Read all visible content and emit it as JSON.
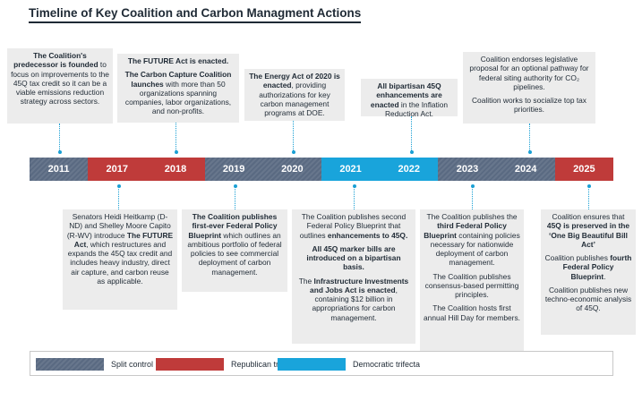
{
  "title": "Timeline of Key Coalition and Carbon Managment Actions",
  "colors": {
    "split": "#5a6a82",
    "republican": "#bf3b3a",
    "democratic": "#19a4db",
    "connector": "#1aa0d4",
    "card": "#ececec"
  },
  "timeline": [
    {
      "year": "2011",
      "control": "split"
    },
    {
      "year": "2017",
      "control": "republican"
    },
    {
      "year": "2018",
      "control": "republican"
    },
    {
      "year": "2019",
      "control": "split"
    },
    {
      "year": "2020",
      "control": "split"
    },
    {
      "year": "2021",
      "control": "democratic"
    },
    {
      "year": "2022",
      "control": "democratic"
    },
    {
      "year": "2023",
      "control": "split"
    },
    {
      "year": "2024",
      "control": "split"
    },
    {
      "year": "2025",
      "control": "republican"
    }
  ],
  "top_events": {
    "e2011": {
      "b1": "The Coalition's predecessor is founded",
      "t1": " to focus on improvements to the 45Q tax credit so it can be a viable emissions reduction strategy across sectors."
    },
    "e2018": {
      "b1": "The FUTURE Act is enacted.",
      "b2": "The Carbon Capture Coalition launches",
      "t2": " with more than 50 organizations spanning companies, labor organizations, and non-profits."
    },
    "e2020": {
      "b1": "The Energy Act of 2020 is enacted",
      "t1": ", providing authorizations for key carbon management programs at DOE."
    },
    "e2022": {
      "b1": "All bipartisan 45Q enhancements are enacted",
      "t1": " in the Inflation Reduction Act."
    },
    "e2024": {
      "t1": "Coalition endorses legislative proposal for an optional pathway for federal siting authority for CO₂ pipelines.",
      "t2": "Coalition works to socialize top tax priorities."
    }
  },
  "bottom_events": {
    "e2017": {
      "t1a": "Senators Heidi Heitkamp (D-ND) and Shelley Moore Capito (R-WV) introduce ",
      "b1": "The FUTURE Act",
      "t1b": ", which restructures and expands the 45Q tax credit and includes heavy industry, direct air capture, and carbon reuse as applicable."
    },
    "e2019": {
      "b1": "The Coalition publishes first-ever Federal Policy Blueprint",
      "t1": " which outlines an ambitious portfolio of federal policies to see commercial deployment of carbon management."
    },
    "e2021": {
      "t1": "The Coalition publishes second Federal Policy Blueprint that outlines ",
      "b1": "enhancements to 45Q.",
      "b2": "All 45Q marker bills are introduced on a bipartisan basis.",
      "t3a": "The ",
      "b3": "Infrastructure Investments and Jobs Act is enacted",
      "t3b": ", containing $12 billion in appropriations for carbon management."
    },
    "e2023": {
      "t1a": "The Coalition publishes the ",
      "b1": "third Federal Policy Blueprint",
      "t1b": " containing policies necessary for nationwide deployment of carbon management.",
      "t2": "The Coalition publishes consensus-based permitting principles.",
      "t3": "The Coalition hosts first annual Hill Day for members."
    },
    "e2025": {
      "t1a": "Coalition ensures that ",
      "b1": "45Q is preserved in the ‘One Big Beautiful Bill Act’",
      "t2a": "Coalition publishes ",
      "b2": "fourth Federal Policy Blueprint",
      "t2b": ".",
      "t3": "Coalition publishes new techno-economic analysis of 45Q."
    }
  },
  "legend": [
    {
      "label": "Split control",
      "control": "split"
    },
    {
      "label": "Republican trifecta",
      "control": "republican"
    },
    {
      "label": "Democratic trifecta",
      "control": "democratic"
    }
  ]
}
